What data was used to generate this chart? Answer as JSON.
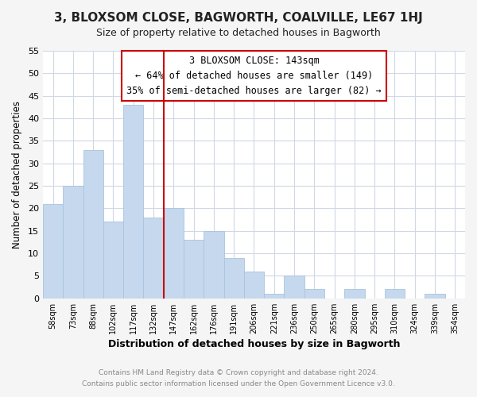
{
  "title": "3, BLOXSOM CLOSE, BAGWORTH, COALVILLE, LE67 1HJ",
  "subtitle": "Size of property relative to detached houses in Bagworth",
  "xlabel": "Distribution of detached houses by size in Bagworth",
  "ylabel": "Number of detached properties",
  "bar_labels": [
    "58sqm",
    "73sqm",
    "88sqm",
    "102sqm",
    "117sqm",
    "132sqm",
    "147sqm",
    "162sqm",
    "176sqm",
    "191sqm",
    "206sqm",
    "221sqm",
    "236sqm",
    "250sqm",
    "265sqm",
    "280sqm",
    "295sqm",
    "310sqm",
    "324sqm",
    "339sqm",
    "354sqm"
  ],
  "bar_values": [
    21,
    25,
    33,
    17,
    43,
    18,
    20,
    13,
    15,
    9,
    6,
    1,
    5,
    2,
    0,
    2,
    0,
    2,
    0,
    1,
    0
  ],
  "bar_color": "#c5d8ed",
  "bar_edgecolor": "#a8c4de",
  "vline_x": 5.5,
  "vline_color": "#cc0000",
  "annotation_line1": "3 BLOXSOM CLOSE: 143sqm",
  "annotation_line2": "← 64% of detached houses are smaller (149)",
  "annotation_line3": "35% of semi-detached houses are larger (82) →",
  "annotation_box_edgecolor": "#cc0000",
  "ylim": [
    0,
    55
  ],
  "yticks": [
    0,
    5,
    10,
    15,
    20,
    25,
    30,
    35,
    40,
    45,
    50,
    55
  ],
  "footer1": "Contains HM Land Registry data © Crown copyright and database right 2024.",
  "footer2": "Contains public sector information licensed under the Open Government Licence v3.0.",
  "bg_color": "#f5f5f5",
  "plot_bg_color": "#ffffff",
  "grid_color": "#d0d8e4"
}
